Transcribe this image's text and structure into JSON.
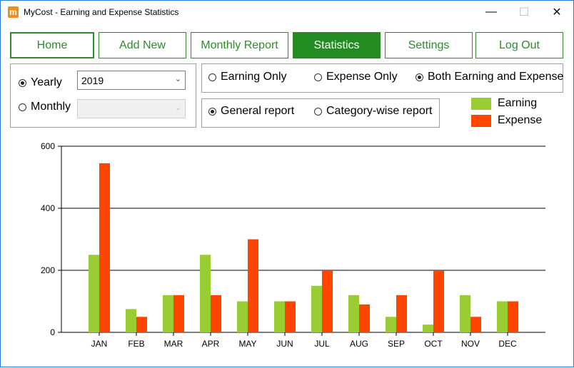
{
  "window": {
    "title": "MyCost - Earning and Expense Statistics",
    "app_icon": "m-logo-icon",
    "controls": {
      "minimize": "—",
      "maximize": "☐",
      "close": "✕"
    }
  },
  "nav": {
    "items": [
      {
        "label": "Home"
      },
      {
        "label": "Add New"
      },
      {
        "label": "Monthly Report"
      },
      {
        "label": "Statistics"
      },
      {
        "label": "Settings"
      },
      {
        "label": "Log Out"
      }
    ],
    "active": "Statistics"
  },
  "period": {
    "yearly_label": "Yearly",
    "monthly_label": "Monthly",
    "selected": "Yearly",
    "year_value": "2019",
    "month_value": ""
  },
  "filter": {
    "earning_only": "Earning Only",
    "expense_only": "Expense Only",
    "both": "Both Earning and Expense",
    "selected": "Both Earning and Expense"
  },
  "report_type": {
    "general": "General report",
    "category": "Category-wise report",
    "selected": "General report"
  },
  "colors": {
    "earning": "#9acd32",
    "expense": "#ff4500",
    "accent": "#228b22"
  },
  "chart_data": {
    "type": "bar",
    "categories": [
      "JAN",
      "FEB",
      "MAR",
      "APR",
      "MAY",
      "JUN",
      "JUL",
      "AUG",
      "SEP",
      "OCT",
      "NOV",
      "DEC"
    ],
    "series": [
      {
        "name": "Earning",
        "values": [
          250,
          75,
          120,
          250,
          100,
          100,
          150,
          120,
          50,
          25,
          120,
          100
        ]
      },
      {
        "name": "Expense",
        "values": [
          545,
          50,
          120,
          120,
          300,
          100,
          200,
          90,
          120,
          200,
          50,
          100
        ]
      }
    ],
    "yticks": [
      "0",
      "200",
      "400",
      "600"
    ],
    "ylim": [
      0,
      600
    ],
    "grid": true,
    "legend": "top-right"
  }
}
